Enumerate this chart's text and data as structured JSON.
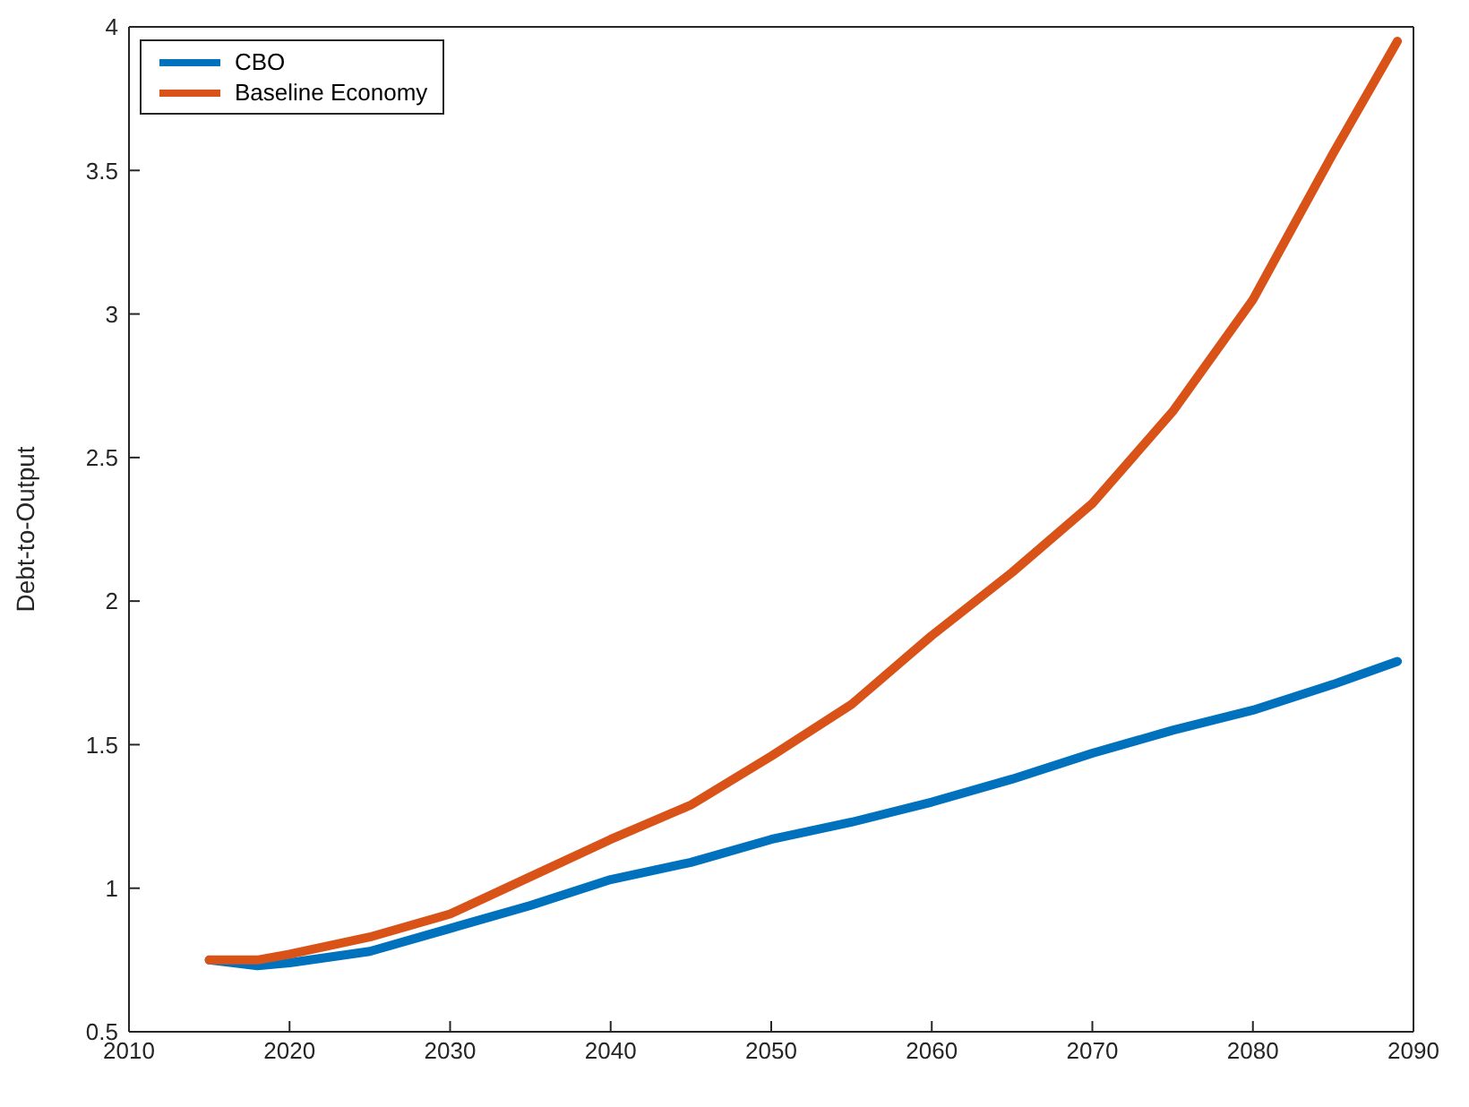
{
  "chart_data": {
    "type": "line",
    "ylabel": "Debt-to-Output",
    "x": [
      2015,
      2018,
      2020,
      2025,
      2030,
      2035,
      2040,
      2045,
      2050,
      2055,
      2060,
      2065,
      2070,
      2075,
      2080,
      2085,
      2089
    ],
    "series": [
      {
        "name": "CBO",
        "color": "#0072bd",
        "values": [
          0.75,
          0.73,
          0.74,
          0.78,
          0.86,
          0.94,
          1.03,
          1.09,
          1.17,
          1.23,
          1.3,
          1.38,
          1.47,
          1.55,
          1.62,
          1.71,
          1.79
        ]
      },
      {
        "name": "Baseline Economy",
        "color": "#d95319",
        "values": [
          0.75,
          0.75,
          0.77,
          0.83,
          0.91,
          1.04,
          1.17,
          1.29,
          1.46,
          1.64,
          1.88,
          2.1,
          2.34,
          2.66,
          3.05,
          3.56,
          3.95
        ]
      }
    ],
    "xlim": [
      2010,
      2090
    ],
    "xticks": [
      2010,
      2020,
      2030,
      2040,
      2050,
      2060,
      2070,
      2080,
      2090
    ],
    "ylim": [
      0.5,
      4
    ],
    "yticks": [
      0.5,
      1,
      1.5,
      2,
      2.5,
      3,
      3.5,
      4
    ],
    "grid": false,
    "legend": "top left",
    "marker": "none",
    "line_style": "solid"
  }
}
